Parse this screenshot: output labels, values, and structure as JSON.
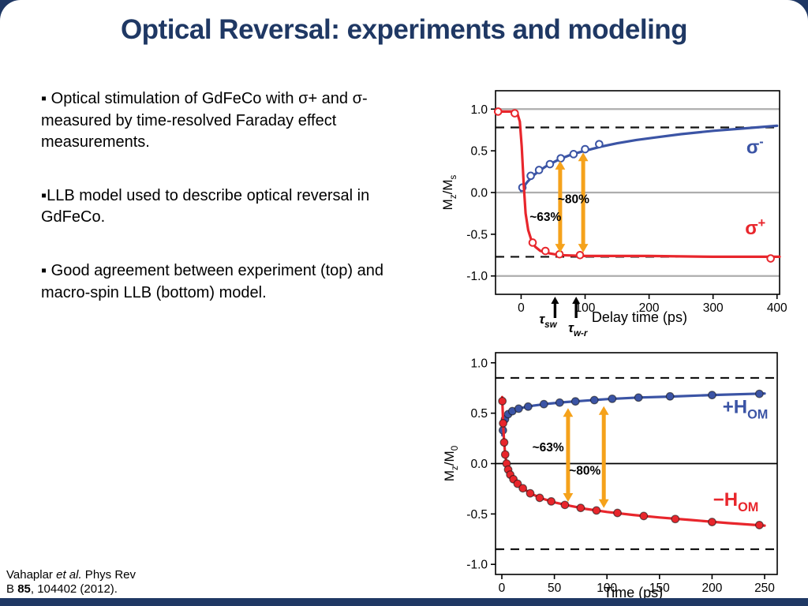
{
  "slide": {
    "title": "Optical Reversal: experiments and modeling",
    "bullets": [
      "▪ Optical stimulation of GdFeCo with σ+ and σ- measured by time-resolved Faraday effect measurements.",
      "▪LLB model used to describe optical reversal in GdFeCo.",
      "▪ Good agreement between experiment (top) and macro-spin LLB (bottom) model."
    ],
    "citation": {
      "author": "Vahaplar ",
      "etal": "et al.",
      "mid": " Phys Rev B ",
      "volume": "85",
      "rest": ", 104402 (2012)."
    },
    "colors": {
      "navy": "#1F3864",
      "blue": "#3B54A5",
      "red": "#E8262C",
      "orange": "#F5A21B"
    }
  },
  "chart_data": [
    {
      "id": "chart-top",
      "type": "line",
      "xlabel": "Delay time (ps)",
      "ylabel_rich": [
        {
          "t": "M"
        },
        {
          "t": "z",
          "sub": true
        },
        {
          "t": "/M"
        },
        {
          "t": "s",
          "sub": true
        }
      ],
      "xlim": [
        -40,
        404
      ],
      "ylim": [
        -1.22,
        1.22
      ],
      "xticks": [
        0,
        100,
        200,
        300,
        400
      ],
      "yticks": [
        -1.0,
        -0.5,
        0.0,
        0.5,
        1.0
      ],
      "grid": false,
      "solid_hlines": {
        "values": [
          1.0,
          0.0,
          -1.0
        ],
        "color": "#ADADAD",
        "width": 2.2
      },
      "dashed_hlines": [
        0.78,
        -0.77
      ],
      "series": [
        {
          "name": "sigma-minus",
          "color": "#3B54A5",
          "marker": "open",
          "label_rich": [
            {
              "t": "σ"
            },
            {
              "t": "-",
              "sup": true
            }
          ],
          "label_pos": [
            352,
            0.47
          ],
          "line": [
            [
              0,
              0.02
            ],
            [
              5,
              0.08
            ],
            [
              10,
              0.13
            ],
            [
              20,
              0.21
            ],
            [
              30,
              0.27
            ],
            [
              40,
              0.32
            ],
            [
              50,
              0.36
            ],
            [
              60,
              0.4
            ],
            [
              80,
              0.46
            ],
            [
              100,
              0.5
            ],
            [
              125,
              0.55
            ],
            [
              150,
              0.59
            ],
            [
              180,
              0.63
            ],
            [
              210,
              0.66
            ],
            [
              250,
              0.7
            ],
            [
              300,
              0.74
            ],
            [
              350,
              0.77
            ],
            [
              400,
              0.8
            ]
          ],
          "markers": [
            [
              2,
              0.06
            ],
            [
              15,
              0.2
            ],
            [
              28,
              0.27
            ],
            [
              45,
              0.34
            ],
            [
              62,
              0.41
            ],
            [
              82,
              0.46
            ],
            [
              100,
              0.52
            ],
            [
              122,
              0.58
            ]
          ]
        },
        {
          "name": "sigma-plus",
          "color": "#E8262C",
          "marker": "open",
          "label_rich": [
            {
              "t": "σ"
            },
            {
              "t": "+",
              "sup": true
            }
          ],
          "label_pos": [
            350,
            -0.5
          ],
          "line": [
            [
              -40,
              0.97
            ],
            [
              -15,
              0.97
            ],
            [
              -6,
              0.95
            ],
            [
              -2,
              0.85
            ],
            [
              1,
              0.55
            ],
            [
              4,
              0.1
            ],
            [
              7,
              -0.25
            ],
            [
              11,
              -0.45
            ],
            [
              16,
              -0.57
            ],
            [
              22,
              -0.65
            ],
            [
              30,
              -0.7
            ],
            [
              45,
              -0.73
            ],
            [
              60,
              -0.75
            ],
            [
              100,
              -0.76
            ],
            [
              200,
              -0.76
            ],
            [
              300,
              -0.77
            ],
            [
              404,
              -0.77
            ]
          ],
          "markers": [
            [
              -36,
              0.97
            ],
            [
              -10,
              0.95
            ],
            [
              18,
              -0.6
            ],
            [
              38,
              -0.7
            ],
            [
              60,
              -0.74
            ],
            [
              92,
              -0.75
            ],
            [
              390,
              -0.79
            ]
          ]
        }
      ],
      "arrows": [
        {
          "x": 61,
          "y1": -0.72,
          "y2": 0.38,
          "label": "~63%",
          "lx": 38,
          "ly": -0.34
        },
        {
          "x": 97,
          "y1": -0.72,
          "y2": 0.48,
          "label": "~80%",
          "lx": 82,
          "ly": -0.13
        }
      ],
      "below_arrows": [
        {
          "x": 53,
          "label_rich": [
            {
              "t": "τ"
            },
            {
              "t": "sw",
              "sub": true
            }
          ],
          "ldx": -9,
          "ldy": 37,
          "anchor": "middle"
        },
        {
          "x": 86,
          "label_rich": [
            {
              "t": "τ"
            },
            {
              "t": "w-r",
              "sub": true
            }
          ],
          "ldx": 2,
          "ldy": 48,
          "anchor": "middle"
        }
      ]
    },
    {
      "id": "chart-bottom",
      "type": "line",
      "xlabel": "Time (ps)",
      "ylabel_rich": [
        {
          "t": "M"
        },
        {
          "t": "z",
          "sub": true
        },
        {
          "t": "/M"
        },
        {
          "t": "0",
          "sub": true
        }
      ],
      "xlim": [
        -6,
        262
      ],
      "ylim": [
        -1.1,
        1.1
      ],
      "xticks": [
        0,
        50,
        100,
        150,
        200,
        250
      ],
      "yticks": [
        -1.0,
        -0.5,
        0.0,
        0.5,
        1.0
      ],
      "grid": false,
      "solid_hlines": {
        "values": [
          0.0
        ],
        "color": "#000000",
        "width": 1.8
      },
      "dashed_hlines": [
        0.85,
        -0.85
      ],
      "series": [
        {
          "name": "plus-H-OM",
          "color": "#3B54A5",
          "marker": "filled",
          "label_rich": [
            {
              "t": "+H"
            },
            {
              "t": "OM",
              "sub": true
            }
          ],
          "label_pos": [
            210,
            0.5
          ],
          "line": [
            [
              0.5,
              0.28
            ],
            [
              1,
              0.33
            ],
            [
              2,
              0.4
            ],
            [
              4,
              0.46
            ],
            [
              7,
              0.5
            ],
            [
              12,
              0.53
            ],
            [
              20,
              0.555
            ],
            [
              30,
              0.575
            ],
            [
              45,
              0.595
            ],
            [
              60,
              0.61
            ],
            [
              80,
              0.625
            ],
            [
              100,
              0.64
            ],
            [
              130,
              0.655
            ],
            [
              160,
              0.665
            ],
            [
              200,
              0.68
            ],
            [
              250,
              0.695
            ]
          ],
          "markers": [
            [
              1,
              0.33
            ],
            [
              3,
              0.44
            ],
            [
              6,
              0.49
            ],
            [
              10,
              0.52
            ],
            [
              16,
              0.545
            ],
            [
              25,
              0.565
            ],
            [
              40,
              0.59
            ],
            [
              55,
              0.605
            ],
            [
              70,
              0.617
            ],
            [
              88,
              0.63
            ],
            [
              105,
              0.643
            ],
            [
              130,
              0.655
            ],
            [
              160,
              0.667
            ],
            [
              200,
              0.68
            ],
            [
              245,
              0.692
            ]
          ]
        },
        {
          "name": "minus-H-OM",
          "color": "#E8262C",
          "marker": "filled",
          "label_rich": [
            {
              "t": "−H"
            },
            {
              "t": "OM",
              "sub": true
            }
          ],
          "label_pos": [
            201,
            -0.42
          ],
          "line": [
            [
              0.3,
              0.66
            ],
            [
              0.8,
              0.52
            ],
            [
              1.3,
              0.38
            ],
            [
              2,
              0.24
            ],
            [
              3,
              0.11
            ],
            [
              4,
              0.03
            ],
            [
              5,
              -0.03
            ],
            [
              7,
              -0.09
            ],
            [
              10,
              -0.14
            ],
            [
              14,
              -0.19
            ],
            [
              20,
              -0.245
            ],
            [
              28,
              -0.3
            ],
            [
              38,
              -0.345
            ],
            [
              50,
              -0.385
            ],
            [
              65,
              -0.42
            ],
            [
              80,
              -0.45
            ],
            [
              100,
              -0.48
            ],
            [
              125,
              -0.51
            ],
            [
              150,
              -0.535
            ],
            [
              180,
              -0.56
            ],
            [
              215,
              -0.59
            ],
            [
              250,
              -0.615
            ]
          ],
          "markers": [
            [
              0.5,
              0.62
            ],
            [
              1.2,
              0.4
            ],
            [
              2.2,
              0.21
            ],
            [
              3.2,
              0.09
            ],
            [
              4.5,
              0.0
            ],
            [
              6,
              -0.06
            ],
            [
              8,
              -0.11
            ],
            [
              11,
              -0.155
            ],
            [
              15,
              -0.2
            ],
            [
              20,
              -0.245
            ],
            [
              27,
              -0.295
            ],
            [
              36,
              -0.34
            ],
            [
              47,
              -0.375
            ],
            [
              60,
              -0.41
            ],
            [
              75,
              -0.44
            ],
            [
              90,
              -0.465
            ],
            [
              110,
              -0.49
            ],
            [
              135,
              -0.52
            ],
            [
              165,
              -0.55
            ],
            [
              200,
              -0.58
            ],
            [
              245,
              -0.61
            ]
          ]
        }
      ],
      "arrows": [
        {
          "x": 63,
          "y1": -0.38,
          "y2": 0.55,
          "label": "~63%",
          "lx": 44,
          "ly": 0.12
        },
        {
          "x": 97,
          "y1": -0.44,
          "y2": 0.57,
          "label": "~80%",
          "lx": 79,
          "ly": -0.11
        }
      ],
      "below_arrows": []
    }
  ]
}
